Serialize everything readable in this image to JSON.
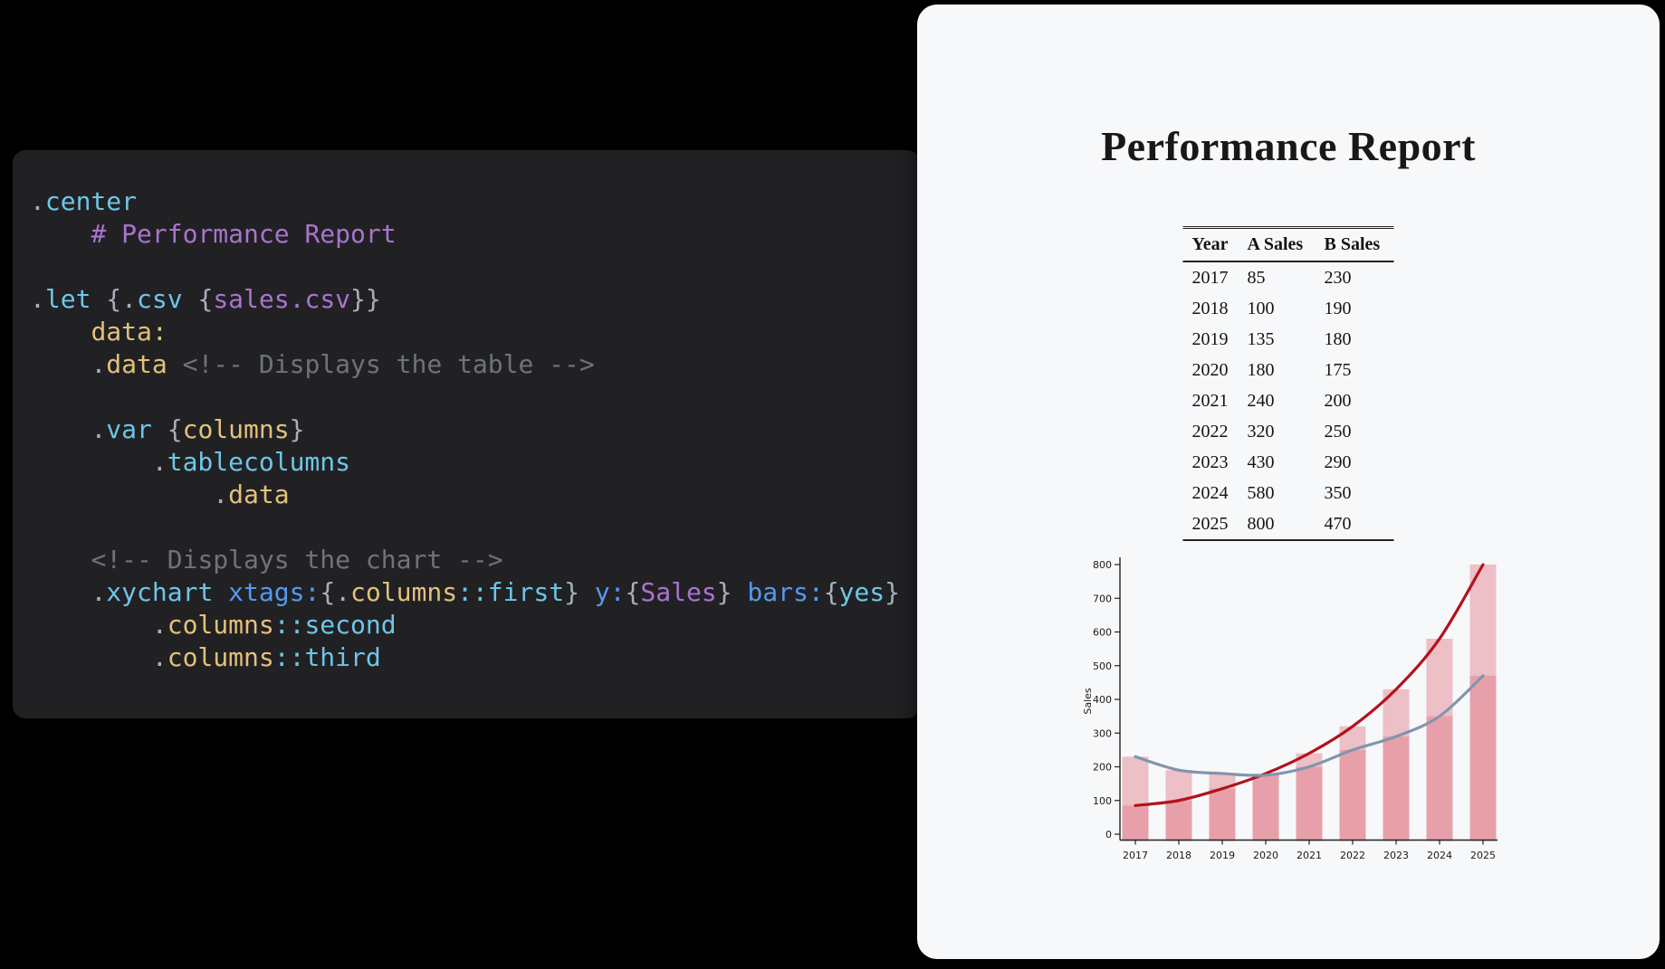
{
  "editor": {
    "background": "#212124",
    "lines": [
      {
        "spans": [
          [
            ".",
            "pun"
          ],
          [
            "center",
            "el"
          ]
        ]
      },
      {
        "spans": [
          [
            "    ",
            "pun"
          ],
          [
            "# Performance Report",
            "str"
          ]
        ]
      },
      {
        "spans": []
      },
      {
        "spans": [
          [
            ".",
            "pun"
          ],
          [
            "let",
            "el"
          ],
          [
            " ",
            "pun"
          ],
          [
            "{",
            "pun"
          ],
          [
            ".",
            "pun"
          ],
          [
            "csv",
            "el"
          ],
          [
            " ",
            "pun"
          ],
          [
            "{",
            "pun"
          ],
          [
            "sales.csv",
            "str"
          ],
          [
            "}}",
            "pun"
          ]
        ]
      },
      {
        "spans": [
          [
            "    ",
            "pun"
          ],
          [
            "data:",
            "val"
          ]
        ]
      },
      {
        "spans": [
          [
            "    ",
            "pun"
          ],
          [
            ".",
            "pun"
          ],
          [
            "data",
            "val"
          ],
          [
            " ",
            "pun"
          ],
          [
            "<!-- Displays the table -->",
            "com"
          ]
        ]
      },
      {
        "spans": []
      },
      {
        "spans": [
          [
            "    ",
            "pun"
          ],
          [
            ".",
            "pun"
          ],
          [
            "var",
            "el"
          ],
          [
            " ",
            "pun"
          ],
          [
            "{",
            "pun"
          ],
          [
            "columns",
            "val"
          ],
          [
            "}",
            "pun"
          ]
        ]
      },
      {
        "spans": [
          [
            "        ",
            "pun"
          ],
          [
            ".",
            "pun"
          ],
          [
            "tablecolumns",
            "el"
          ]
        ]
      },
      {
        "spans": [
          [
            "            ",
            "pun"
          ],
          [
            ".",
            "pun"
          ],
          [
            "data",
            "val"
          ]
        ]
      },
      {
        "spans": []
      },
      {
        "spans": [
          [
            "    ",
            "pun"
          ],
          [
            "<!-- Displays the chart -->",
            "com"
          ]
        ]
      },
      {
        "spans": [
          [
            "    ",
            "pun"
          ],
          [
            ".",
            "pun"
          ],
          [
            "xychart",
            "el"
          ],
          [
            " ",
            "pun"
          ],
          [
            "xtags:",
            "attr"
          ],
          [
            "{",
            "pun"
          ],
          [
            ".",
            "pun"
          ],
          [
            "columns",
            "val"
          ],
          [
            "::first",
            "el"
          ],
          [
            "}",
            "pun"
          ],
          [
            " ",
            "pun"
          ],
          [
            "y:",
            "attr"
          ],
          [
            "{",
            "pun"
          ],
          [
            "Sales",
            "str"
          ],
          [
            "}",
            "pun"
          ],
          [
            " ",
            "pun"
          ],
          [
            "bars:",
            "attr"
          ],
          [
            "{",
            "pun"
          ],
          [
            "yes",
            "el"
          ],
          [
            "}",
            "pun"
          ]
        ]
      },
      {
        "spans": [
          [
            "        ",
            "pun"
          ],
          [
            ".",
            "pun"
          ],
          [
            "columns",
            "val"
          ],
          [
            "::second",
            "el"
          ]
        ]
      },
      {
        "spans": [
          [
            "        ",
            "pun"
          ],
          [
            ".",
            "pun"
          ],
          [
            "columns",
            "val"
          ],
          [
            "::third",
            "el"
          ]
        ]
      }
    ]
  },
  "report": {
    "title": "Performance Report",
    "table": {
      "headers": [
        "Year",
        "A Sales",
        "B Sales"
      ],
      "rows": [
        [
          "2017",
          "85",
          "230"
        ],
        [
          "2018",
          "100",
          "190"
        ],
        [
          "2019",
          "135",
          "180"
        ],
        [
          "2020",
          "180",
          "175"
        ],
        [
          "2021",
          "240",
          "200"
        ],
        [
          "2022",
          "320",
          "250"
        ],
        [
          "2023",
          "430",
          "290"
        ],
        [
          "2024",
          "580",
          "350"
        ],
        [
          "2025",
          "800",
          "470"
        ]
      ]
    }
  },
  "chart_data": {
    "type": "bar",
    "categories": [
      "2017",
      "2018",
      "2019",
      "2020",
      "2021",
      "2022",
      "2023",
      "2024",
      "2025"
    ],
    "series": [
      {
        "name": "A Sales",
        "values": [
          85,
          100,
          135,
          180,
          240,
          320,
          430,
          580,
          800
        ],
        "line_color": "#b3121b"
      },
      {
        "name": "B Sales",
        "values": [
          230,
          190,
          180,
          175,
          200,
          250,
          290,
          350,
          470
        ],
        "line_color": "#8195ab"
      }
    ],
    "title": "",
    "xlabel": "",
    "ylabel": "Sales",
    "ylim": [
      0,
      800
    ],
    "ytick_step": 100,
    "bar_color": "#e07a87",
    "bar_opacity": 0.45,
    "axis_color": "#222222",
    "grid": false,
    "legend": false
  },
  "colors": {
    "page_background": "#000000",
    "editor_background": "#212124",
    "card_background": "#f7f8fa",
    "token_element": "#6ec6e6",
    "token_attribute": "#5598ee",
    "token_value": "#e3c179",
    "token_string": "#a974ce",
    "token_punctuation": "#a8afba",
    "token_comment": "#6d737c"
  }
}
